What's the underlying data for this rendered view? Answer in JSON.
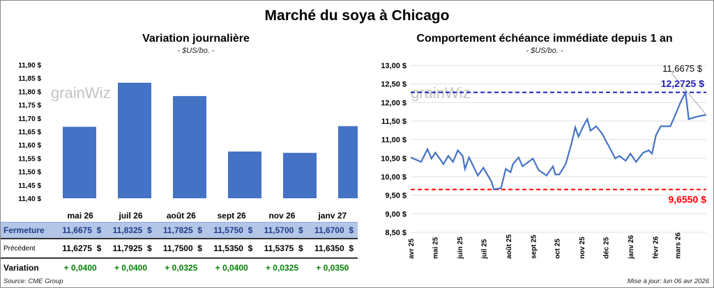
{
  "title": "Marché du soya à Chicago",
  "left": {
    "subtitle": "Variation journalière",
    "unit": "- $US/bo. -"
  },
  "right": {
    "subtitle": "Comportement  échéance immédiate depuis 1 an",
    "unit": "- $US/bo. -"
  },
  "watermark": "grainWiz",
  "table": {
    "headers": [
      "mai 26",
      "juil 26",
      "août 26",
      "sept 26",
      "nov 26",
      "janv 27"
    ],
    "rows": [
      {
        "label": "Fermeture",
        "values": [
          "11,6675  $",
          "11,8325  $",
          "11,7825  $",
          "11,5750  $",
          "11,5700  $",
          "11,6700  $"
        ]
      },
      {
        "label": "Précédent",
        "values": [
          "11,6275  $",
          "11,7925  $",
          "11,7500  $",
          "11,5350  $",
          "11,5375  $",
          "11,6350  $"
        ]
      },
      {
        "label": "Variation",
        "values": [
          "+ 0,0400",
          "+ 0,0400",
          "+ 0,0325",
          "+ 0,0400",
          "+ 0,0325",
          "+ 0,0350"
        ]
      }
    ]
  },
  "footer": {
    "source": "Source: CME Group",
    "updated": "Mise à jour: lun 06 avr 2026"
  },
  "colors": {
    "bar": "#4472c4",
    "line": "#4472c4",
    "high": "#1f1fb4",
    "low": "#ff0000",
    "fermeture_bg": "#b4c6e7",
    "variation": "#008000"
  },
  "chart_data": [
    {
      "type": "bar",
      "categories": [
        "mai 26",
        "juil 26",
        "août 26",
        "sept 26",
        "nov 26",
        "janv 27"
      ],
      "values": [
        11.6675,
        11.8325,
        11.7825,
        11.575,
        11.57,
        11.67
      ],
      "ylim": [
        11.4,
        11.9
      ],
      "yticks": [
        "11,40 $",
        "11,45 $",
        "11,50 $",
        "11,55 $",
        "11,60 $",
        "11,65 $",
        "11,70 $",
        "11,75 $",
        "11,80 $",
        "11,85 $",
        "11,90 $"
      ],
      "grid": false
    },
    {
      "type": "line",
      "ylim": [
        8.5,
        13.0
      ],
      "yticks": [
        "8,50 $",
        "9,00 $",
        "9,50 $",
        "10,00 $",
        "10,50 $",
        "11,00 $",
        "11,50 $",
        "12,00 $",
        "12,50 $",
        "13,00 $"
      ],
      "xticks": [
        "avr 25",
        "mai 25",
        "juin 25",
        "juil 25",
        "août 25",
        "sept 25",
        "oct 25",
        "nov 25",
        "déc 25",
        "janv 26",
        "févr 26",
        "mars 26"
      ],
      "grid": true,
      "x": [
        "2025-04-01",
        "2025-04-14",
        "2025-04-22",
        "2025-04-27",
        "2025-05-02",
        "2025-05-12",
        "2025-05-18",
        "2025-05-24",
        "2025-05-30",
        "2025-06-05",
        "2025-06-08",
        "2025-06-13",
        "2025-06-24",
        "2025-07-01",
        "2025-07-11",
        "2025-07-14",
        "2025-07-23",
        "2025-07-29",
        "2025-08-04",
        "2025-08-07",
        "2025-08-14",
        "2025-08-19",
        "2025-09-01",
        "2025-09-08",
        "2025-09-18",
        "2025-09-26",
        "2025-09-29",
        "2025-10-04",
        "2025-10-12",
        "2025-10-19",
        "2025-10-24",
        "2025-10-28",
        "2025-11-03",
        "2025-11-08",
        "2025-11-12",
        "2025-11-19",
        "2025-11-26",
        "2025-12-07",
        "2025-12-13",
        "2025-12-18",
        "2025-12-26",
        "2026-01-01",
        "2026-01-08",
        "2026-01-17",
        "2026-01-24",
        "2026-01-28",
        "2026-02-02",
        "2026-02-08",
        "2026-02-20",
        "2026-02-27",
        "2026-03-05",
        "2026-03-11",
        "2026-03-15",
        "2026-03-24",
        "2026-03-30",
        "2026-04-06"
      ],
      "y": [
        10.52,
        10.4,
        10.74,
        10.49,
        10.65,
        10.34,
        10.56,
        10.4,
        10.71,
        10.56,
        10.21,
        10.52,
        10.03,
        10.24,
        9.87,
        9.66,
        9.69,
        10.21,
        10.12,
        10.34,
        10.52,
        10.28,
        10.49,
        10.18,
        10.03,
        10.28,
        10.06,
        10.06,
        10.34,
        10.87,
        11.33,
        11.08,
        11.36,
        11.55,
        11.24,
        11.36,
        11.18,
        10.74,
        10.49,
        10.56,
        10.43,
        10.62,
        10.4,
        10.65,
        10.71,
        10.62,
        11.12,
        11.36,
        11.36,
        11.71,
        12.02,
        12.2725,
        11.55,
        11.61,
        11.64,
        11.6675
      ],
      "high": {
        "value": 12.2725,
        "label": "12,2725 $"
      },
      "low": {
        "value": 9.655,
        "label": "9,6550 $"
      },
      "last": {
        "value": 11.6675,
        "label": "11,6675 $"
      }
    }
  ]
}
